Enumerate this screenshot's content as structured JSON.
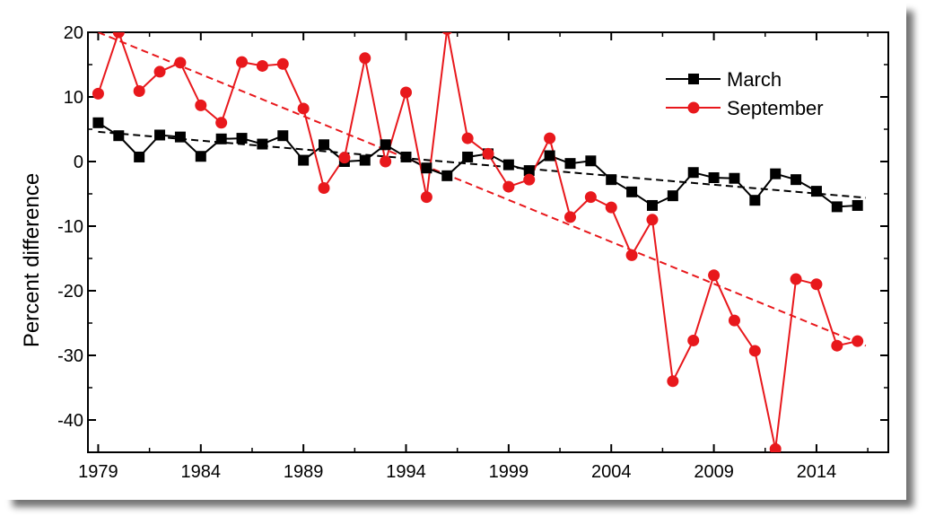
{
  "chart_data": {
    "type": "line",
    "title": "",
    "xlabel": "",
    "ylabel": "Percent difference",
    "xlim": [
      1978.5,
      2017.5
    ],
    "ylim": [
      -45,
      20
    ],
    "xticks": [
      1979,
      1984,
      1989,
      1994,
      1999,
      2004,
      2009,
      2014
    ],
    "yticks": [
      20,
      10,
      0,
      -10,
      -20,
      -30,
      -40
    ],
    "ytick_labels": [
      "20",
      "10",
      "0",
      "-10",
      "-20",
      "-30",
      "-40"
    ],
    "legend_position": "top-right",
    "series": [
      {
        "name": "March",
        "color": "#000000",
        "marker": "square",
        "x": [
          1979,
          1980,
          1981,
          1982,
          1983,
          1984,
          1985,
          1986,
          1987,
          1988,
          1989,
          1990,
          1991,
          1992,
          1993,
          1994,
          1995,
          1996,
          1997,
          1998,
          1999,
          2000,
          2001,
          2002,
          2003,
          2004,
          2005,
          2006,
          2007,
          2008,
          2009,
          2010,
          2011,
          2012,
          2013,
          2014,
          2015,
          2016
        ],
        "values": [
          6.0,
          4.0,
          0.7,
          4.1,
          3.8,
          0.8,
          3.5,
          3.6,
          2.7,
          4.0,
          0.2,
          2.6,
          0.0,
          0.2,
          2.6,
          0.7,
          -1.0,
          -2.2,
          0.7,
          1.2,
          -0.5,
          -1.4,
          0.9,
          -0.3,
          0.1,
          -2.8,
          -4.7,
          -6.8,
          -5.3,
          -1.7,
          -2.5,
          -2.6,
          -6.0,
          -1.9,
          -2.8,
          -4.6,
          -7.0,
          -6.8
        ],
        "trend": {
          "color": "#000000",
          "start": 4.6,
          "end": -5.5
        }
      },
      {
        "name": "September",
        "color": "#e8181c",
        "marker": "circle",
        "x": [
          1979,
          1980,
          1981,
          1982,
          1983,
          1984,
          1985,
          1986,
          1987,
          1988,
          1989,
          1990,
          1991,
          1992,
          1993,
          1994,
          1995,
          1996,
          1997,
          1998,
          1999,
          2000,
          2001,
          2002,
          2003,
          2004,
          2005,
          2006,
          2007,
          2008,
          2009,
          2010,
          2011,
          2012,
          2013,
          2014,
          2015,
          2016
        ],
        "values": [
          10.5,
          20.0,
          10.9,
          13.9,
          15.3,
          8.7,
          6.0,
          15.4,
          14.8,
          15.1,
          8.2,
          -4.1,
          0.6,
          16.0,
          0.0,
          10.7,
          -5.5,
          20.5,
          3.6,
          1.2,
          -3.9,
          -2.8,
          3.6,
          -8.6,
          -5.5,
          -7.1,
          -14.5,
          -9.0,
          -34.0,
          -27.7,
          -17.6,
          -24.6,
          -29.3,
          -44.5,
          -18.2,
          -19.0,
          -28.5,
          -27.8
        ],
        "trend": {
          "color": "#e8181c",
          "start": 20.0,
          "end": -28.0
        }
      }
    ]
  }
}
